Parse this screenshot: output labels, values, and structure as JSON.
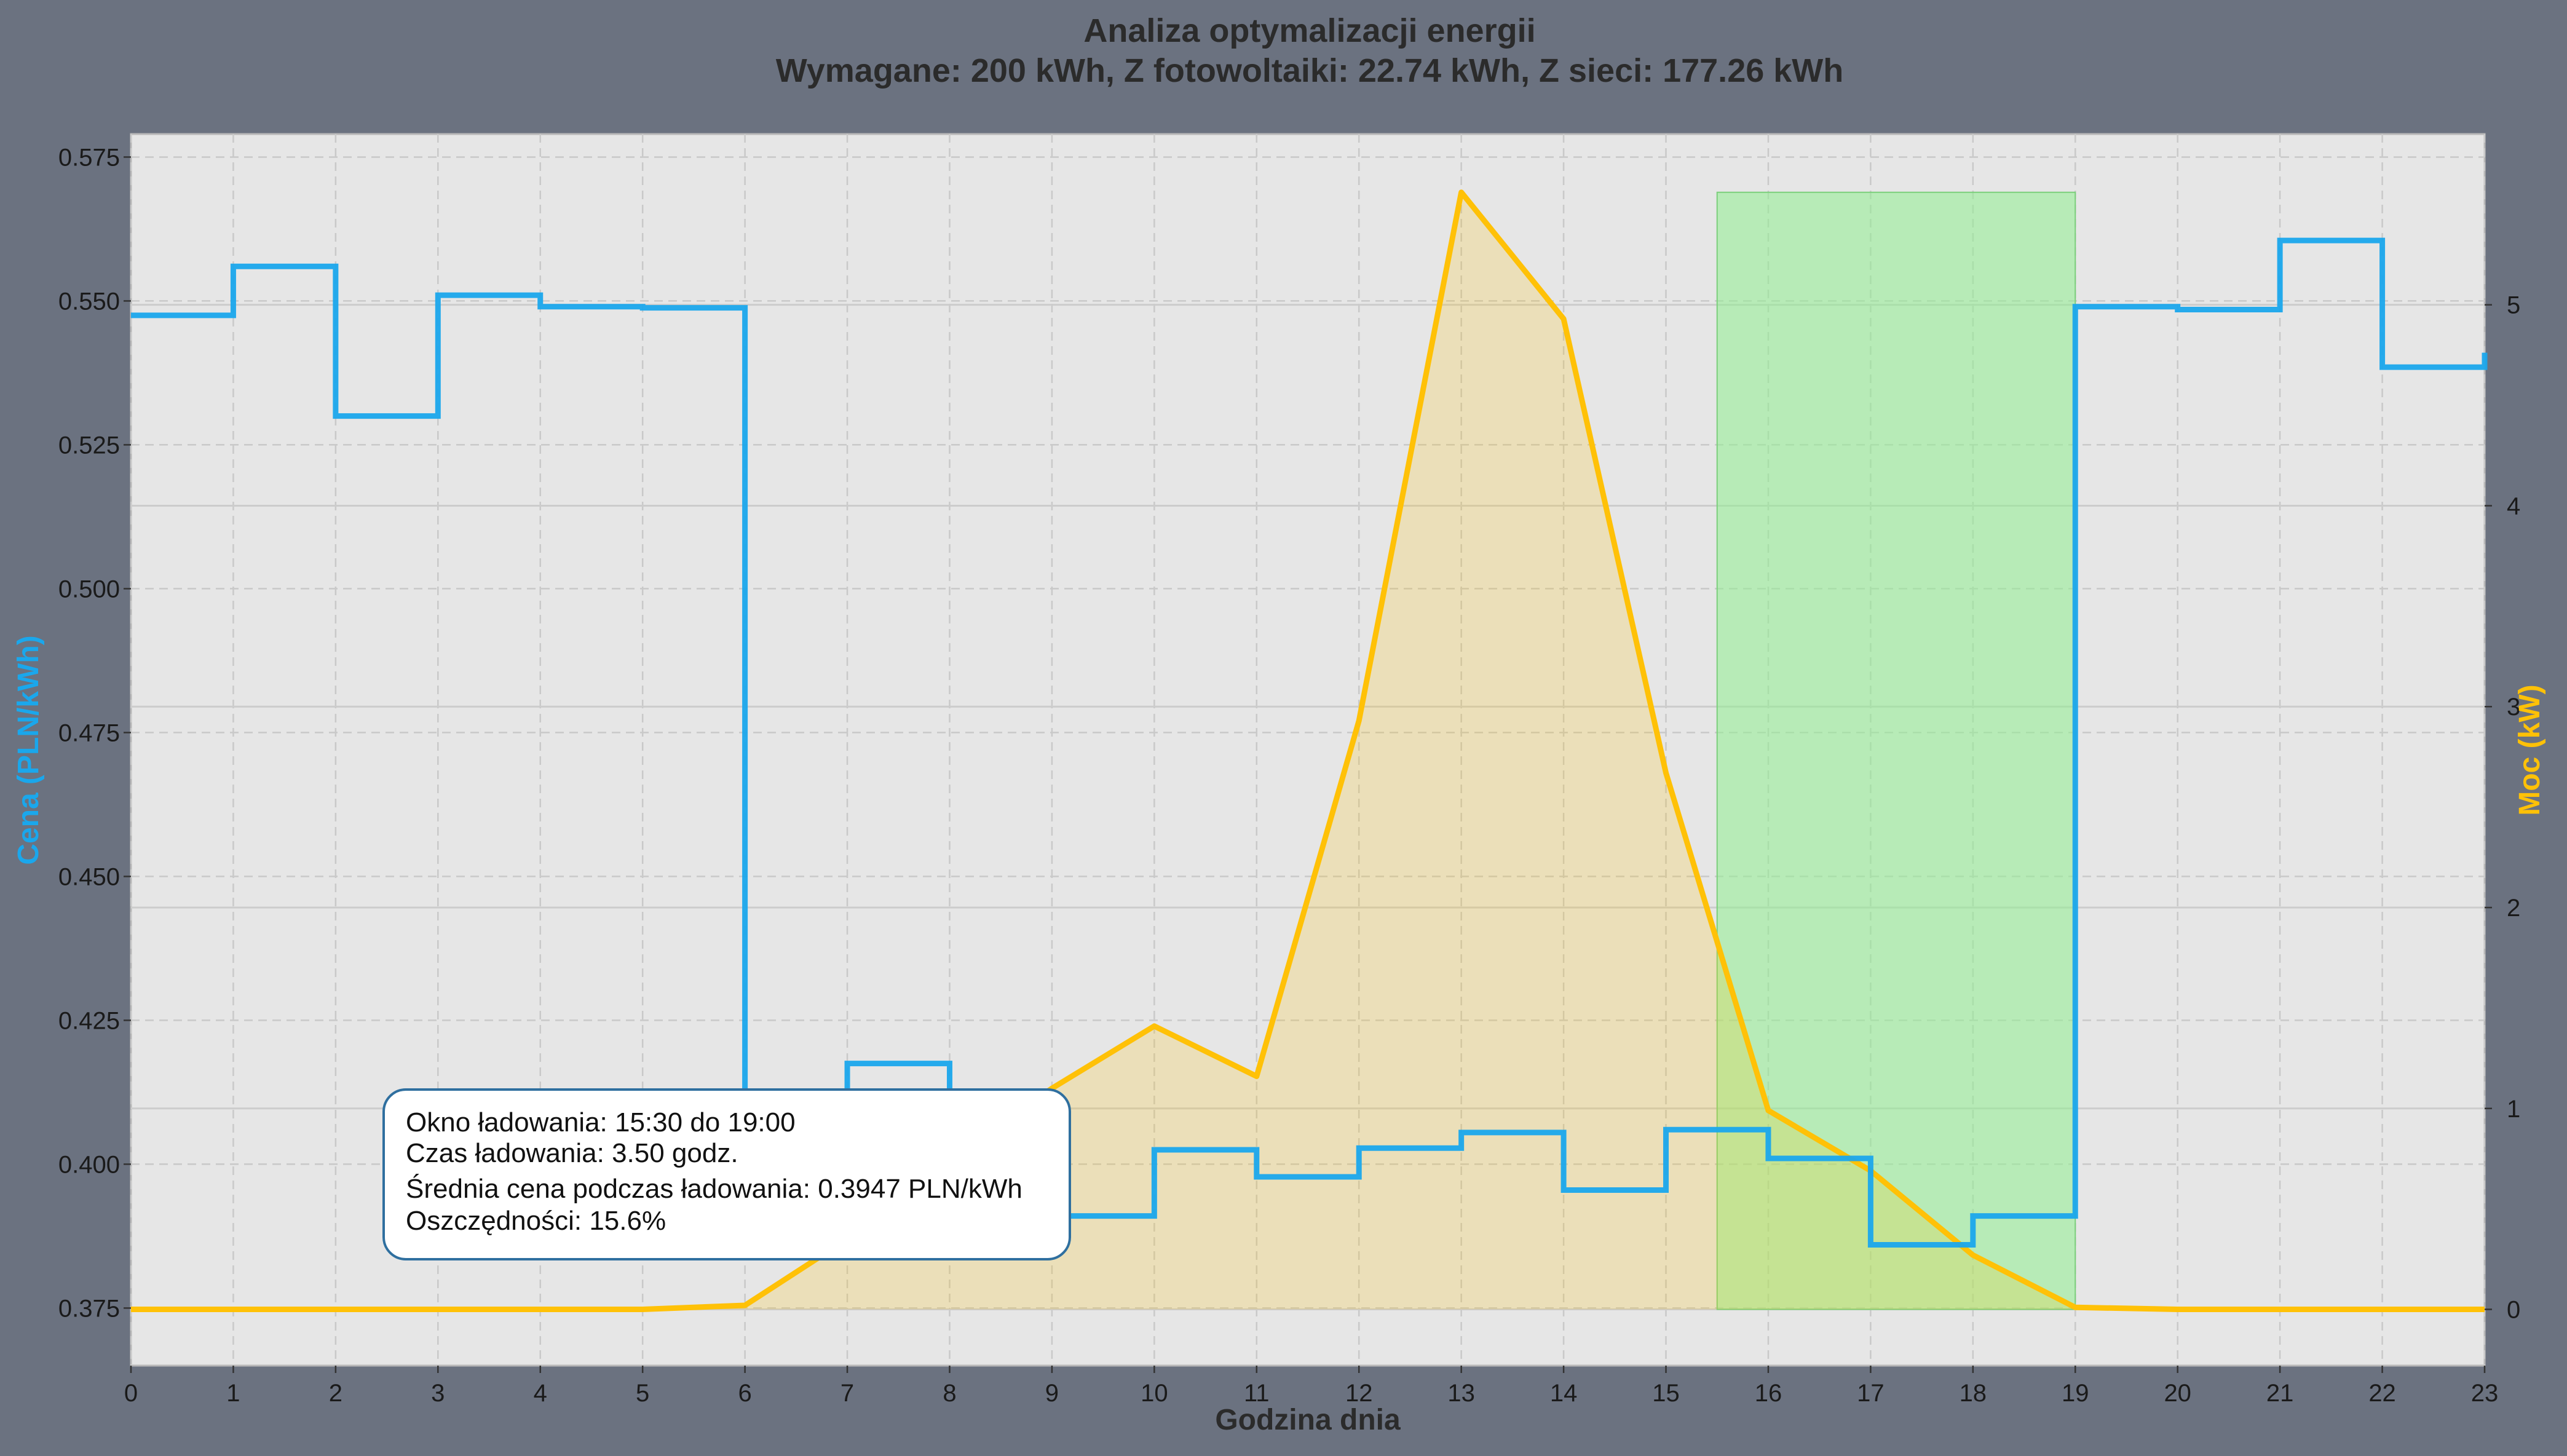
{
  "chart_data": {
    "type": "line",
    "title": "Analiza optymalizacji energii",
    "subtitle": "Wymagane: 200 kWh, Z fotowoltaiki: 22.74 kWh, Z sieci: 177.26 kWh",
    "xlabel": "Godzina dnia",
    "ylabel_left": "Cena (PLN/kWh)",
    "ylabel_right": "Moc (kW)",
    "xlim": [
      0,
      23
    ],
    "ylim_left": [
      0.365,
      0.579
    ],
    "ylim_right": [
      -0.28,
      5.85
    ],
    "x_ticks": [
      0,
      1,
      2,
      3,
      4,
      5,
      6,
      7,
      8,
      9,
      10,
      11,
      12,
      13,
      14,
      15,
      16,
      17,
      18,
      19,
      20,
      21,
      22,
      23
    ],
    "y_left_ticks": [
      0.375,
      0.4,
      0.425,
      0.45,
      0.475,
      0.5,
      0.525,
      0.55,
      0.575
    ],
    "y_left_tick_labels": [
      "0.375",
      "0.400",
      "0.425",
      "0.450",
      "0.475",
      "0.500",
      "0.525",
      "0.550",
      "0.575"
    ],
    "y_right_ticks": [
      0,
      1,
      2,
      3,
      4,
      5
    ],
    "grid": true,
    "series": [
      {
        "axis": "left",
        "style": "step",
        "x": [
          0,
          1,
          2,
          3,
          4,
          5,
          6,
          7,
          8,
          9,
          10,
          11,
          12,
          13,
          14,
          15,
          16,
          17,
          18,
          19,
          20,
          21,
          22,
          23
        ],
        "values": [
          0.5475,
          0.556,
          0.53,
          0.551,
          0.549,
          0.5488,
          0.407,
          0.4175,
          0.402,
          0.391,
          0.4025,
          0.3978,
          0.4028,
          0.4055,
          0.3955,
          0.406,
          0.401,
          0.386,
          0.391,
          0.549,
          0.5485,
          0.5605,
          0.5385,
          0.541
        ],
        "color": "#1aa7ec"
      },
      {
        "axis": "right",
        "style": "line-fill",
        "x": [
          0,
          1,
          2,
          3,
          4,
          5,
          6,
          7,
          8,
          9,
          10,
          11,
          12,
          13,
          14,
          15,
          16,
          17,
          18,
          19,
          20,
          21,
          22,
          23
        ],
        "values": [
          0,
          0,
          0,
          0,
          0,
          0,
          0.02,
          0.35,
          0.75,
          1.1,
          1.41,
          1.16,
          2.93,
          5.56,
          4.93,
          2.67,
          0.99,
          0.69,
          0.27,
          0.01,
          0,
          0,
          0,
          0
        ],
        "color": "#ffc107"
      }
    ],
    "highlight_window": {
      "x_start": 15.5,
      "x_end": 19.0,
      "y_top_right": 5.56,
      "color": "#90ee90"
    },
    "info_box": {
      "lines": [
        "Okno ładowania: 15:30 do 19:00",
        "Czas ładowania: 3.50 godz.",
        "Średnia cena podczas ładowania: 0.3947 PLN/kWh",
        "Oszczędności: 15.6%"
      ]
    },
    "colors": {
      "price": "#1aa7ec",
      "power": "#ffc107",
      "window": "#90ee90",
      "plot_bg": "#e6e6e6",
      "figure_bg": "#6b7280",
      "info_border": "#2f6f9f"
    }
  }
}
